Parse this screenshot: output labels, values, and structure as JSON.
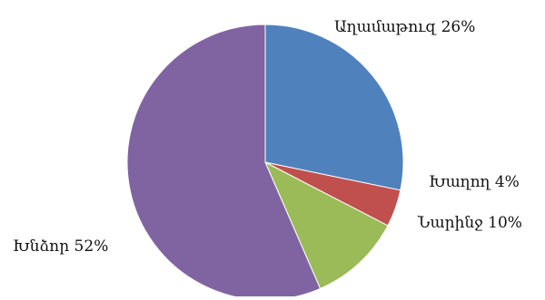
{
  "chart_data": {
    "type": "pie",
    "title": "",
    "start_angle_deg": 0,
    "direction": "clockwise",
    "series": [
      {
        "values": [
          26,
          4,
          10,
          52
        ],
        "categories": [
          "Աղամաթուզ",
          "Խաղող",
          "Նարինջ",
          "Խնձոր"
        ],
        "labels": [
          "Աղամաթուզ 26%",
          "Խաղող 4%",
          "Նարինջ 10%",
          "Խնձոր 52%"
        ],
        "colors": [
          "#4F81BD",
          "#C0504D",
          "#9BBB59",
          "#8064A2"
        ]
      }
    ],
    "legend": "none",
    "data_labels": "outside"
  }
}
